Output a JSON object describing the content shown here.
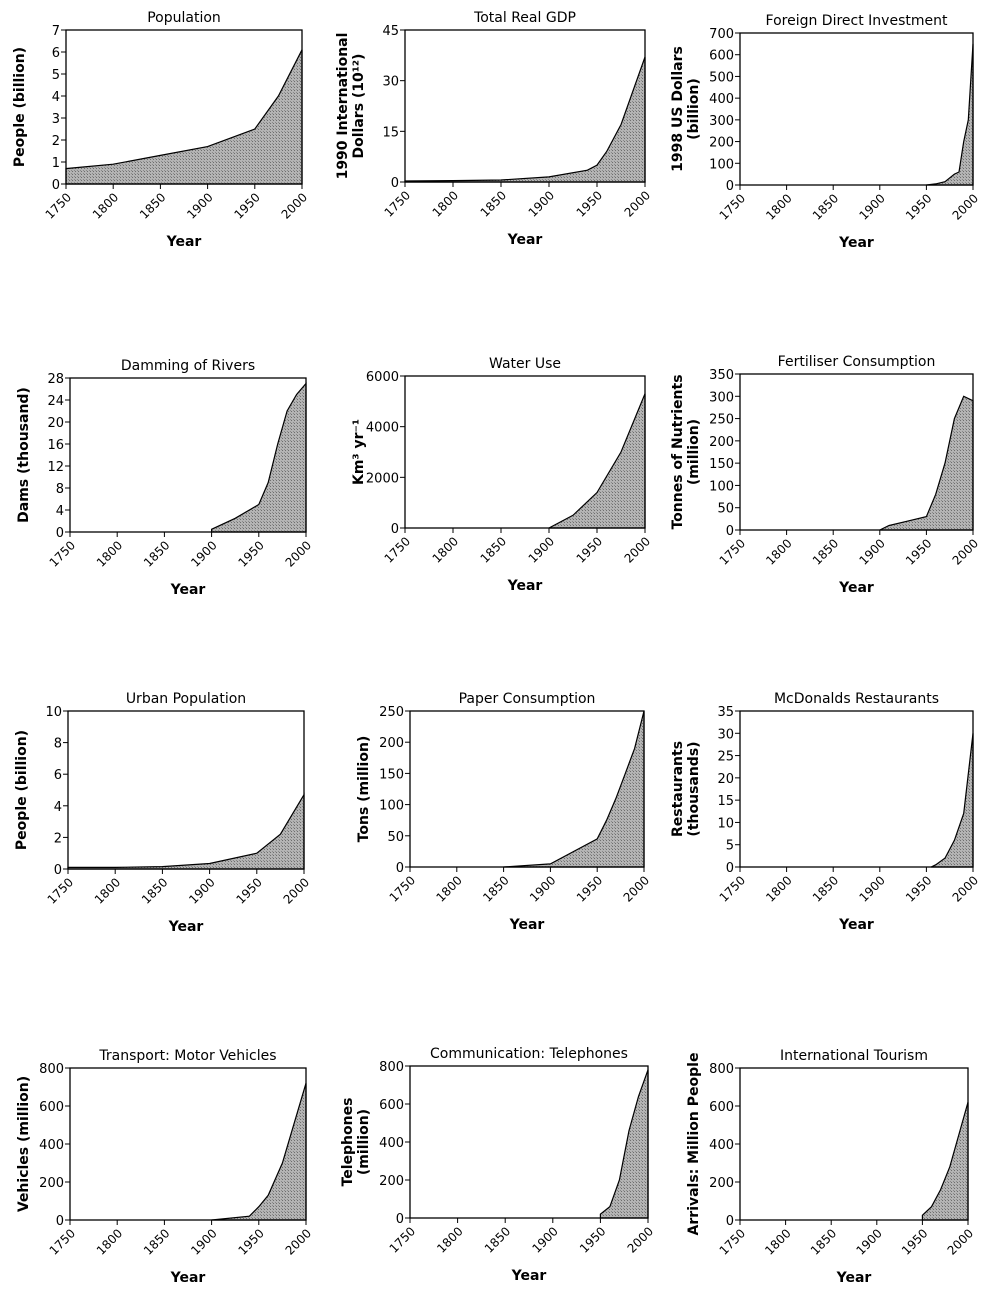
{
  "chart_data": [
    {
      "type": "area",
      "title": "Population",
      "xlabel": "Year",
      "ylabel": [
        "People (billion)"
      ],
      "xlim": [
        1750,
        2000
      ],
      "ylim": [
        0,
        7
      ],
      "yticks": [
        0,
        1,
        2,
        3,
        4,
        5,
        6,
        7
      ],
      "xticks": [
        1750,
        1800,
        1850,
        1900,
        1950,
        2000
      ],
      "x": [
        1750,
        1800,
        1850,
        1900,
        1950,
        1975,
        2000
      ],
      "values": [
        0.7,
        0.9,
        1.3,
        1.7,
        2.5,
        4.0,
        6.1
      ]
    },
    {
      "type": "area",
      "title": "Total Real GDP",
      "xlabel": "Year",
      "ylabel": [
        "1990 International",
        "Dollars (10¹²)"
      ],
      "xlim": [
        1750,
        2000
      ],
      "ylim": [
        0,
        45
      ],
      "yticks": [
        0,
        15,
        30,
        45
      ],
      "xticks": [
        1750,
        1800,
        1850,
        1900,
        1950,
        2000
      ],
      "x": [
        1750,
        1800,
        1850,
        1900,
        1940,
        1950,
        1960,
        1975,
        2000
      ],
      "values": [
        0.3,
        0.4,
        0.6,
        1.5,
        3.5,
        5,
        9,
        17,
        37
      ]
    },
    {
      "type": "area",
      "title": "Foreign Direct Investment",
      "xlabel": "Year",
      "ylabel": [
        "1998 US Dollars",
        "(billion)"
      ],
      "xlim": [
        1750,
        2000
      ],
      "ylim": [
        0,
        700
      ],
      "yticks": [
        0,
        100,
        200,
        300,
        400,
        500,
        600,
        700
      ],
      "xticks": [
        1750,
        1800,
        1850,
        1900,
        1950,
        2000
      ],
      "x": [
        1950,
        1960,
        1970,
        1980,
        1985,
        1990,
        1995,
        2000
      ],
      "values": [
        0,
        5,
        15,
        50,
        60,
        200,
        300,
        650
      ]
    },
    {
      "type": "area",
      "title": "Damming of Rivers",
      "xlabel": "Year",
      "ylabel": [
        "Dams (thousand)"
      ],
      "xlim": [
        1750,
        2000
      ],
      "ylim": [
        0,
        28
      ],
      "yticks": [
        0,
        4,
        8,
        12,
        16,
        20,
        24,
        28
      ],
      "xticks": [
        1750,
        1800,
        1850,
        1900,
        1950,
        2000
      ],
      "x": [
        1900,
        1925,
        1950,
        1960,
        1970,
        1980,
        1990,
        2000
      ],
      "values": [
        0.5,
        2.5,
        5,
        9,
        16,
        22,
        25,
        27
      ]
    },
    {
      "type": "area",
      "title": "Water Use",
      "xlabel": "Year",
      "ylabel": [
        "Km³ yr⁻¹"
      ],
      "xlim": [
        1750,
        2000
      ],
      "ylim": [
        0,
        6000
      ],
      "yticks": [
        0,
        2000,
        4000,
        6000
      ],
      "xticks": [
        1750,
        1800,
        1850,
        1900,
        1950,
        2000
      ],
      "x": [
        1900,
        1925,
        1950,
        1975,
        2000
      ],
      "values": [
        0,
        500,
        1400,
        3000,
        5300
      ]
    },
    {
      "type": "area",
      "title": "Fertiliser Consumption",
      "xlabel": "Year",
      "ylabel": [
        "Tonnes of Nutrients",
        "(million)"
      ],
      "xlim": [
        1750,
        2000
      ],
      "ylim": [
        0,
        350
      ],
      "yticks": [
        0,
        50,
        100,
        150,
        200,
        250,
        300,
        350
      ],
      "xticks": [
        1750,
        1800,
        1850,
        1900,
        1950,
        2000
      ],
      "x": [
        1900,
        1910,
        1930,
        1950,
        1960,
        1970,
        1980,
        1990,
        2000
      ],
      "values": [
        0,
        10,
        20,
        30,
        80,
        150,
        250,
        300,
        290
      ]
    },
    {
      "type": "area",
      "title": "Urban Population",
      "xlabel": "Year",
      "ylabel": [
        "People (billion)"
      ],
      "xlim": [
        1750,
        2000
      ],
      "ylim": [
        0,
        10
      ],
      "yticks": [
        0,
        2,
        4,
        6,
        8,
        10
      ],
      "xticks": [
        1750,
        1800,
        1850,
        1900,
        1950,
        2000
      ],
      "x": [
        1750,
        1800,
        1850,
        1900,
        1950,
        1975,
        2000
      ],
      "values": [
        0.1,
        0.1,
        0.15,
        0.35,
        1.0,
        2.2,
        4.7
      ]
    },
    {
      "type": "area",
      "title": "Paper Consumption",
      "xlabel": "Year",
      "ylabel": [
        "Tons (million)"
      ],
      "xlim": [
        1750,
        2000
      ],
      "ylim": [
        0,
        250
      ],
      "yticks": [
        0,
        50,
        100,
        150,
        200,
        250
      ],
      "xticks": [
        1750,
        1800,
        1850,
        1900,
        1950,
        2000
      ],
      "x": [
        1850,
        1900,
        1925,
        1950,
        1960,
        1970,
        1980,
        1990,
        2000
      ],
      "values": [
        0,
        5,
        25,
        45,
        75,
        110,
        150,
        190,
        250
      ]
    },
    {
      "type": "area",
      "title": "McDonalds Restaurants",
      "xlabel": "Year",
      "ylabel": [
        "Restaurants",
        "(thousands)"
      ],
      "xlim": [
        1750,
        2000
      ],
      "ylim": [
        0,
        35
      ],
      "yticks": [
        0,
        5,
        10,
        15,
        20,
        25,
        30,
        35
      ],
      "xticks": [
        1750,
        1800,
        1850,
        1900,
        1950,
        2000
      ],
      "x": [
        1955,
        1960,
        1970,
        1980,
        1990,
        2000
      ],
      "values": [
        0,
        0.5,
        2,
        6,
        12,
        30
      ]
    },
    {
      "type": "area",
      "title": "Transport: Motor Vehicles",
      "xlabel": "Year",
      "ylabel": [
        "Vehicles (million)"
      ],
      "xlim": [
        1750,
        2000
      ],
      "ylim": [
        0,
        800
      ],
      "yticks": [
        0,
        200,
        400,
        600,
        800
      ],
      "xticks": [
        1750,
        1800,
        1850,
        1900,
        1950,
        2000
      ],
      "x": [
        1900,
        1940,
        1950,
        1960,
        1975,
        2000
      ],
      "values": [
        0,
        20,
        70,
        130,
        300,
        720
      ]
    },
    {
      "type": "area",
      "title": "Communication: Telephones",
      "xlabel": "Year",
      "ylabel": [
        "Telephones",
        "(million)"
      ],
      "xlim": [
        1750,
        2000
      ],
      "ylim": [
        0,
        800
      ],
      "yticks": [
        0,
        200,
        400,
        600,
        800
      ],
      "xticks": [
        1750,
        1800,
        1850,
        1900,
        1950,
        2000
      ],
      "x": [
        1950,
        1960,
        1970,
        1975,
        1980,
        1990,
        2000
      ],
      "values": [
        20,
        60,
        200,
        330,
        460,
        640,
        780
      ]
    },
    {
      "type": "area",
      "title": "International Tourism",
      "xlabel": "Year",
      "ylabel": [
        "Arrivals: Million People"
      ],
      "xlim": [
        1750,
        2000
      ],
      "ylim": [
        0,
        800
      ],
      "yticks": [
        0,
        200,
        400,
        600,
        800
      ],
      "xticks": [
        1750,
        1800,
        1850,
        1900,
        1950,
        2000
      ],
      "x": [
        1950,
        1960,
        1970,
        1980,
        1990,
        2000
      ],
      "values": [
        25,
        70,
        160,
        280,
        450,
        620
      ]
    }
  ]
}
